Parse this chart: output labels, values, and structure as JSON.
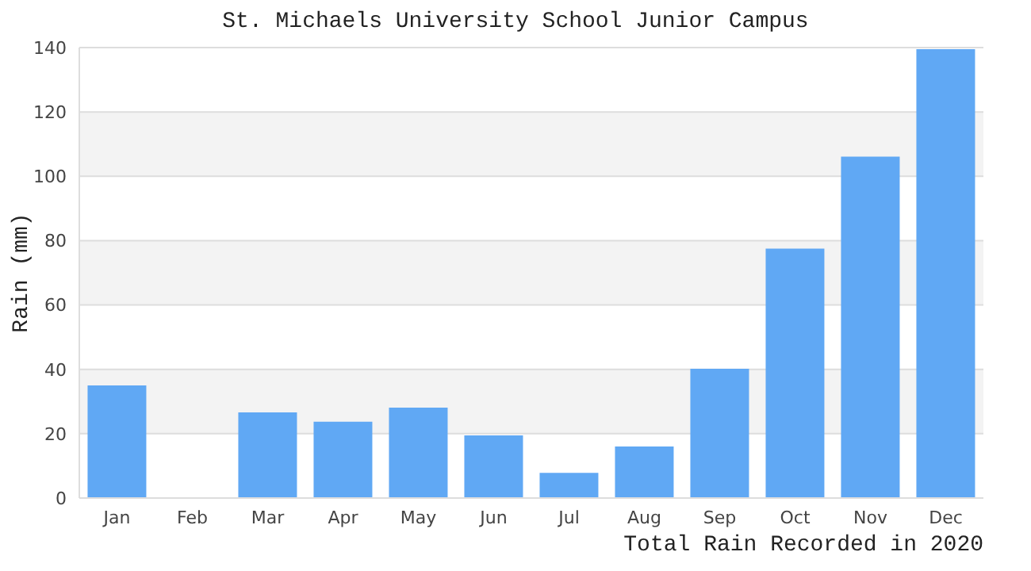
{
  "chart_data": {
    "type": "bar",
    "title": "St. Michaels University School Junior Campus",
    "xlabel": "Total Rain Recorded in 2020",
    "ylabel": "Rain (mm)",
    "categories": [
      "Jan",
      "Feb",
      "Mar",
      "Apr",
      "May",
      "Jun",
      "Jul",
      "Aug",
      "Sep",
      "Oct",
      "Nov",
      "Dec"
    ],
    "values": [
      35,
      0,
      26.6,
      23.7,
      28.1,
      19.5,
      7.8,
      16,
      40.2,
      77.5,
      106.1,
      139.5
    ],
    "color": "#60a8f4",
    "ylim": [
      0,
      140
    ],
    "yticks": [
      0,
      20,
      40,
      60,
      80,
      100,
      120,
      140
    ],
    "grid": "y"
  }
}
